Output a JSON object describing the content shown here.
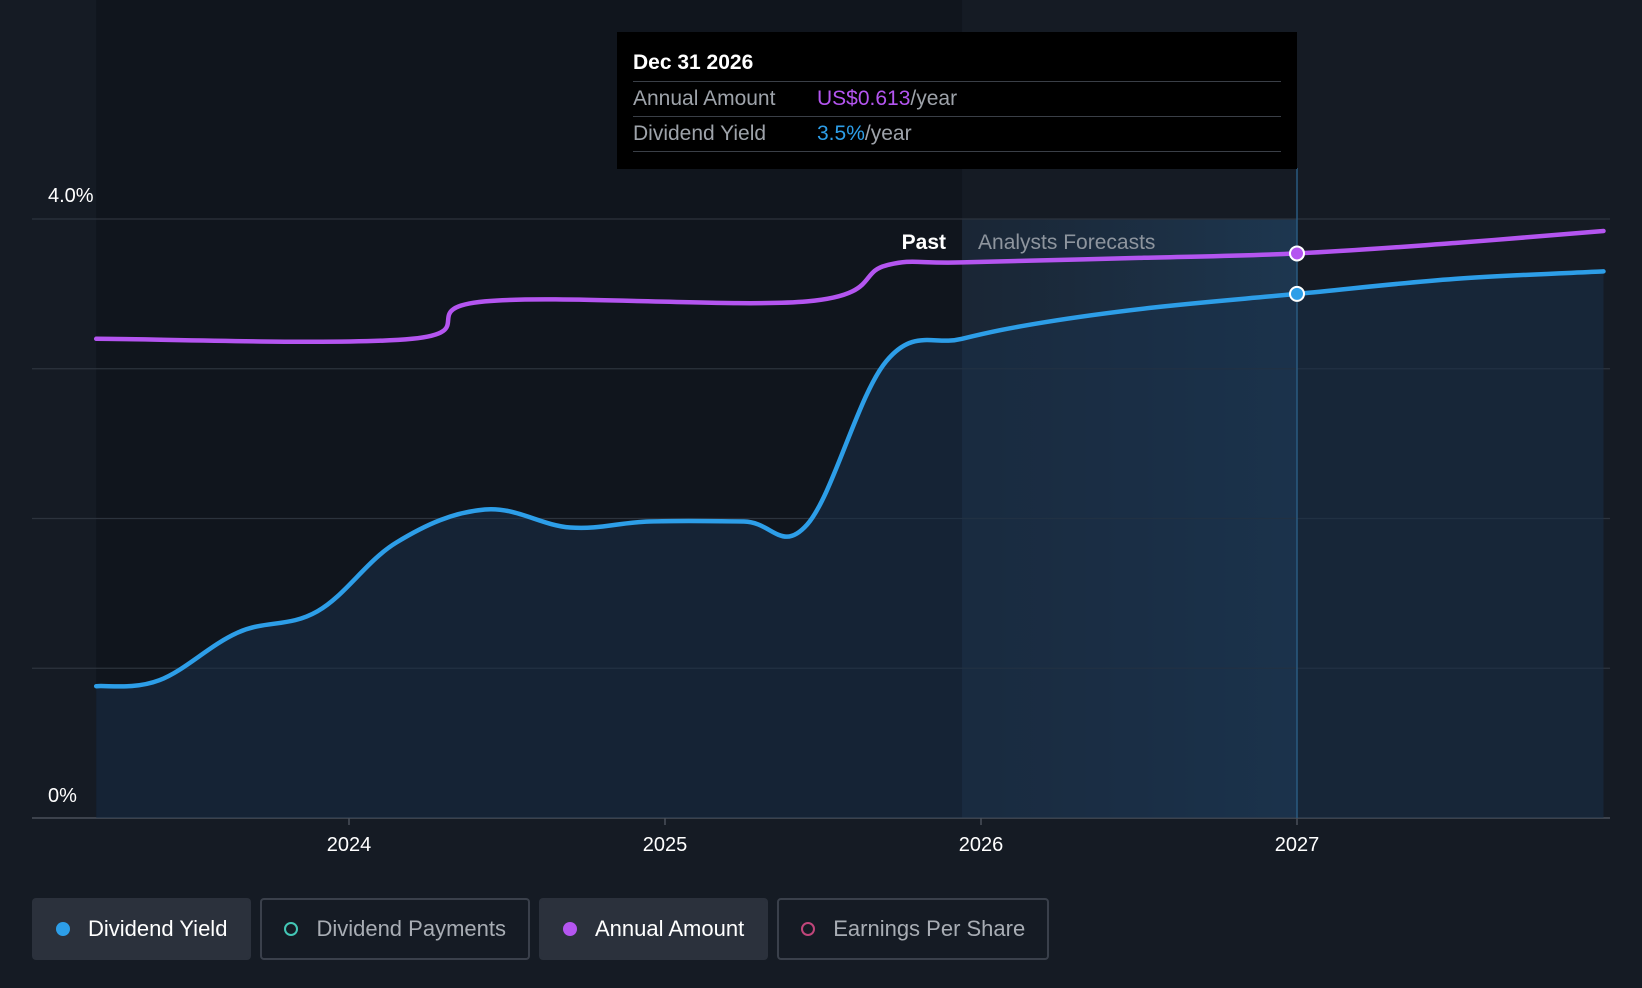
{
  "chart_data": {
    "type": "line",
    "y_axis": {
      "min": 0,
      "max": 4.0,
      "tick_labels": [
        "4.0%",
        "0%"
      ]
    },
    "x_axis": {
      "tick_labels": [
        "2024",
        "2025",
        "2026",
        "2027"
      ],
      "ticks": [
        2024,
        2025,
        2026,
        2027
      ]
    },
    "x_range": [
      2023.2,
      2027.97
    ],
    "forecast_start": 2025.94,
    "section_labels": {
      "past": "Past",
      "forecast": "Analysts Forecasts"
    },
    "series": [
      {
        "name": "Dividend Yield",
        "color": "#2d9ee8",
        "unit": "%",
        "points": [
          [
            2023.2,
            0.88
          ],
          [
            2023.4,
            0.92
          ],
          [
            2023.65,
            1.24
          ],
          [
            2023.9,
            1.38
          ],
          [
            2024.15,
            1.84
          ],
          [
            2024.43,
            2.06
          ],
          [
            2024.7,
            1.94
          ],
          [
            2024.95,
            1.98
          ],
          [
            2025.25,
            1.98
          ],
          [
            2025.45,
            1.96
          ],
          [
            2025.7,
            3.05
          ],
          [
            2025.94,
            3.2
          ],
          [
            2026.2,
            3.31
          ],
          [
            2026.55,
            3.41
          ],
          [
            2027.0,
            3.5
          ],
          [
            2027.5,
            3.6
          ],
          [
            2027.97,
            3.65
          ]
        ]
      },
      {
        "name": "Annual Amount",
        "color": "#b455f0",
        "unit": "US$",
        "points": [
          [
            2023.2,
            3.2
          ],
          [
            2024.2,
            3.2
          ],
          [
            2024.43,
            3.45
          ],
          [
            2025.45,
            3.45
          ],
          [
            2025.7,
            3.69
          ],
          [
            2025.94,
            3.71
          ],
          [
            2026.5,
            3.74
          ],
          [
            2027.0,
            3.77
          ],
          [
            2027.5,
            3.84
          ],
          [
            2027.97,
            3.92
          ]
        ]
      }
    ],
    "highlight": {
      "x": 2027.0,
      "yield": 3.5,
      "annual_y": 3.77
    }
  },
  "tooltip": {
    "date": "Dec 31 2026",
    "annual_label": "Annual Amount",
    "annual_value": "US$0.613",
    "annual_unit": "/year",
    "yield_label": "Dividend Yield",
    "yield_value": "3.5%",
    "yield_unit": "/year"
  },
  "legend": [
    {
      "label": "Dividend Yield",
      "active": true
    },
    {
      "label": "Dividend Payments",
      "active": false
    },
    {
      "label": "Annual Amount",
      "active": true
    },
    {
      "label": "Earnings Per Share",
      "active": false
    }
  ],
  "colors": {
    "background": "#151b24",
    "past_background": "#10151d",
    "yield": "#2d9ee8",
    "annual": "#b455f0",
    "payments": "#43c6b5",
    "eps": "#c0457a"
  }
}
